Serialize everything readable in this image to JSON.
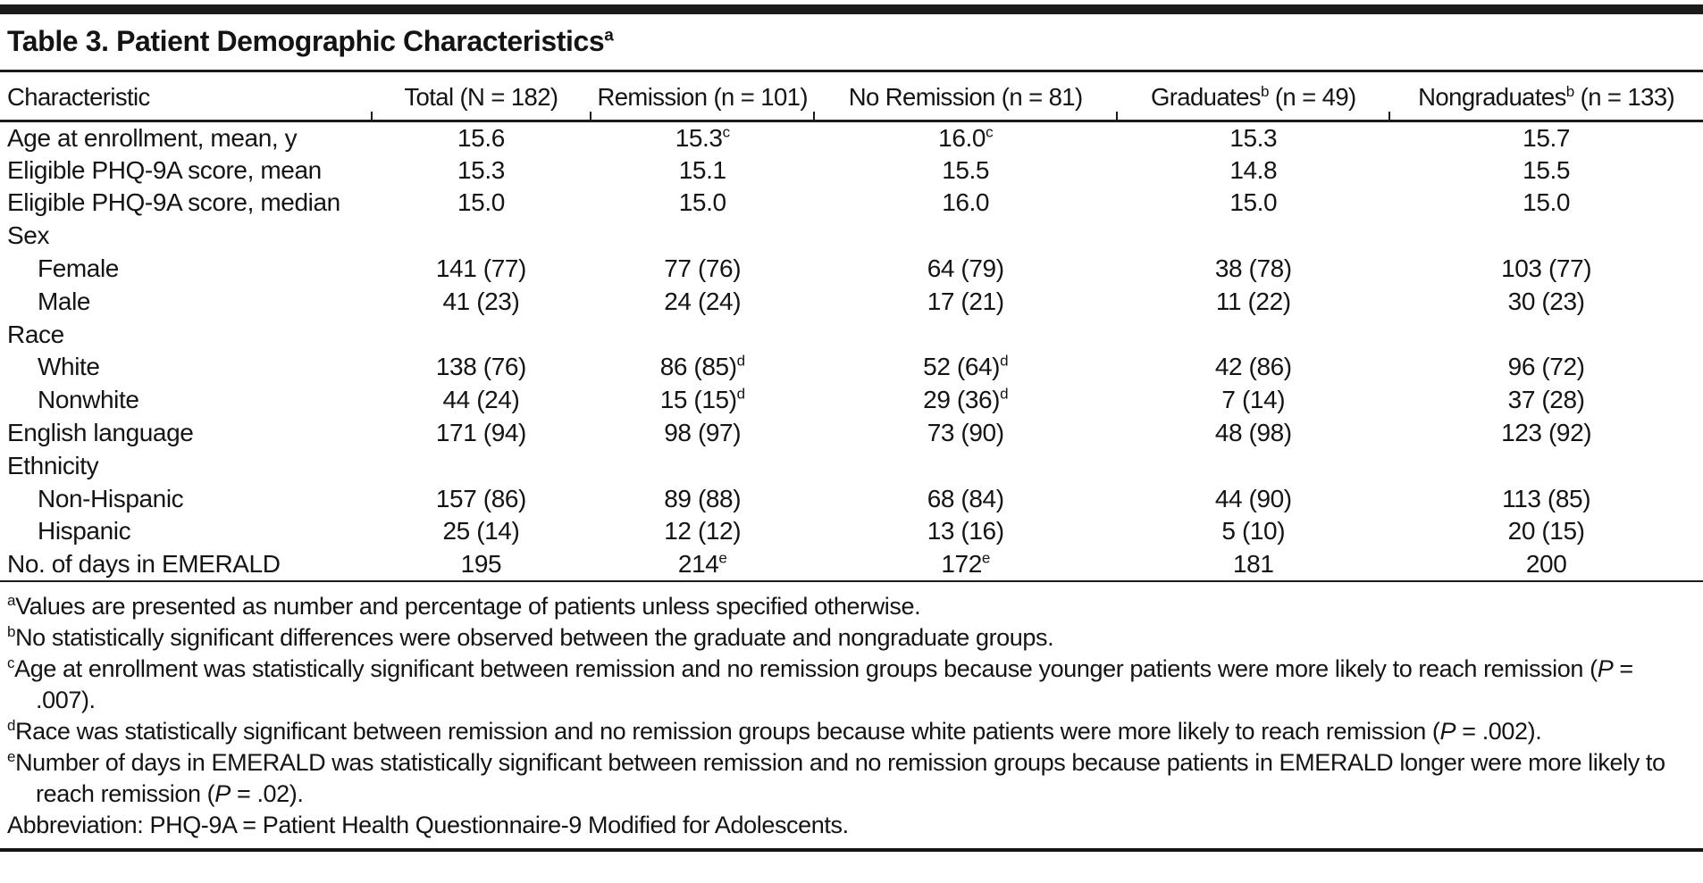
{
  "title": {
    "text": "Table 3. Patient Demographic Characteristics",
    "sup": "a"
  },
  "table": {
    "columns": [
      {
        "pre": "Characteristic",
        "sup": "",
        "post": ""
      },
      {
        "pre": "Total (N = 182)",
        "sup": "",
        "post": ""
      },
      {
        "pre": "Remission (n = 101)",
        "sup": "",
        "post": ""
      },
      {
        "pre": "No Remission (n = 81)",
        "sup": "",
        "post": ""
      },
      {
        "pre": "Graduates",
        "sup": "b",
        "post": " (n = 49)"
      },
      {
        "pre": "Nongraduates",
        "sup": "b",
        "post": " (n = 133)"
      }
    ],
    "rows": [
      {
        "label": "Age at enrollment, mean, y",
        "indent": false,
        "cells": [
          {
            "v": "15.6",
            "sup": ""
          },
          {
            "v": "15.3",
            "sup": "c"
          },
          {
            "v": "16.0",
            "sup": "c"
          },
          {
            "v": "15.3",
            "sup": ""
          },
          {
            "v": "15.7",
            "sup": ""
          }
        ]
      },
      {
        "label": "Eligible PHQ-9A score, mean",
        "indent": false,
        "cells": [
          {
            "v": "15.3",
            "sup": ""
          },
          {
            "v": "15.1",
            "sup": ""
          },
          {
            "v": "15.5",
            "sup": ""
          },
          {
            "v": "14.8",
            "sup": ""
          },
          {
            "v": "15.5",
            "sup": ""
          }
        ]
      },
      {
        "label": "Eligible PHQ-9A score, median",
        "indent": false,
        "cells": [
          {
            "v": "15.0",
            "sup": ""
          },
          {
            "v": "15.0",
            "sup": ""
          },
          {
            "v": "16.0",
            "sup": ""
          },
          {
            "v": "15.0",
            "sup": ""
          },
          {
            "v": "15.0",
            "sup": ""
          }
        ]
      },
      {
        "label": "Sex",
        "indent": false,
        "cells": []
      },
      {
        "label": "Female",
        "indent": true,
        "cells": [
          {
            "v": "141 (77)",
            "sup": ""
          },
          {
            "v": "77 (76)",
            "sup": ""
          },
          {
            "v": "64 (79)",
            "sup": ""
          },
          {
            "v": "38 (78)",
            "sup": ""
          },
          {
            "v": "103 (77)",
            "sup": ""
          }
        ]
      },
      {
        "label": "Male",
        "indent": true,
        "cells": [
          {
            "v": "41 (23)",
            "sup": ""
          },
          {
            "v": "24 (24)",
            "sup": ""
          },
          {
            "v": "17 (21)",
            "sup": ""
          },
          {
            "v": "11 (22)",
            "sup": ""
          },
          {
            "v": "30 (23)",
            "sup": ""
          }
        ]
      },
      {
        "label": "Race",
        "indent": false,
        "cells": []
      },
      {
        "label": "White",
        "indent": true,
        "cells": [
          {
            "v": "138 (76)",
            "sup": ""
          },
          {
            "v": "86 (85)",
            "sup": "d"
          },
          {
            "v": "52 (64)",
            "sup": "d"
          },
          {
            "v": "42 (86)",
            "sup": ""
          },
          {
            "v": "96 (72)",
            "sup": ""
          }
        ]
      },
      {
        "label": "Nonwhite",
        "indent": true,
        "cells": [
          {
            "v": "44 (24)",
            "sup": ""
          },
          {
            "v": "15 (15)",
            "sup": "d"
          },
          {
            "v": "29 (36)",
            "sup": "d"
          },
          {
            "v": "7 (14)",
            "sup": ""
          },
          {
            "v": "37 (28)",
            "sup": ""
          }
        ]
      },
      {
        "label": "English language",
        "indent": false,
        "cells": [
          {
            "v": "171 (94)",
            "sup": ""
          },
          {
            "v": "98 (97)",
            "sup": ""
          },
          {
            "v": "73 (90)",
            "sup": ""
          },
          {
            "v": "48 (98)",
            "sup": ""
          },
          {
            "v": "123 (92)",
            "sup": ""
          }
        ]
      },
      {
        "label": "Ethnicity",
        "indent": false,
        "cells": []
      },
      {
        "label": "Non-Hispanic",
        "indent": true,
        "cells": [
          {
            "v": "157 (86)",
            "sup": ""
          },
          {
            "v": "89 (88)",
            "sup": ""
          },
          {
            "v": "68 (84)",
            "sup": ""
          },
          {
            "v": "44 (90)",
            "sup": ""
          },
          {
            "v": "113 (85)",
            "sup": ""
          }
        ]
      },
      {
        "label": "Hispanic",
        "indent": true,
        "cells": [
          {
            "v": "25 (14)",
            "sup": ""
          },
          {
            "v": "12 (12)",
            "sup": ""
          },
          {
            "v": "13 (16)",
            "sup": ""
          },
          {
            "v": "5 (10)",
            "sup": ""
          },
          {
            "v": "20 (15)",
            "sup": ""
          }
        ]
      },
      {
        "label": "No. of days in EMERALD",
        "indent": false,
        "cells": [
          {
            "v": "195",
            "sup": ""
          },
          {
            "v": "214",
            "sup": "e"
          },
          {
            "v": "172",
            "sup": "e"
          },
          {
            "v": "181",
            "sup": ""
          },
          {
            "v": "200",
            "sup": ""
          }
        ]
      }
    ]
  },
  "footnotes": [
    {
      "marker": "a",
      "segments": [
        {
          "t": "text",
          "v": "Values are presented as number and percentage of patients unless specified otherwise."
        }
      ]
    },
    {
      "marker": "b",
      "segments": [
        {
          "t": "text",
          "v": "No statistically significant differences were observed between the graduate and nongraduate groups."
        }
      ]
    },
    {
      "marker": "c",
      "segments": [
        {
          "t": "text",
          "v": "Age at enrollment was statistically significant between remission and no remission groups because younger patients were more likely to reach remission ("
        },
        {
          "t": "i",
          "v": "P"
        },
        {
          "t": "text",
          "v": " = .007)."
        }
      ]
    },
    {
      "marker": "d",
      "segments": [
        {
          "t": "text",
          "v": "Race was statistically significant between remission and no remission groups because white patients were more likely to reach remission ("
        },
        {
          "t": "i",
          "v": "P"
        },
        {
          "t": "text",
          "v": " = .002)."
        }
      ]
    },
    {
      "marker": "e",
      "segments": [
        {
          "t": "text",
          "v": "Number of days in EMERALD was statistically significant between remission and no remission groups because patients in EMERALD longer were more likely to reach remission ("
        },
        {
          "t": "i",
          "v": "P"
        },
        {
          "t": "text",
          "v": " = .02)."
        }
      ]
    },
    {
      "marker": "",
      "segments": [
        {
          "t": "text",
          "v": "Abbreviation: PHQ-9A = Patient Health Questionnaire-9 Modified for Adolescents."
        }
      ]
    }
  ],
  "colors": {
    "rule": "#1b1b1b",
    "text": "#141414",
    "background": "#ffffff"
  }
}
